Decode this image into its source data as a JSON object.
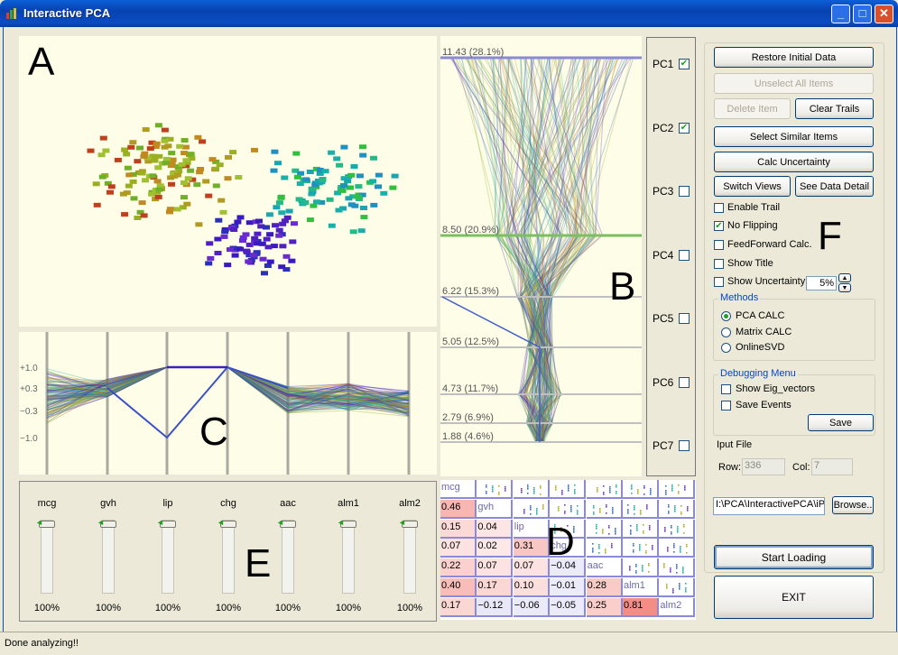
{
  "window": {
    "title": "Interactive PCA",
    "status": "Done analyzing!!"
  },
  "labels": {
    "a": "A",
    "b": "B",
    "c": "C",
    "d": "D",
    "e": "E",
    "f": "F"
  },
  "pc_panel": {
    "items": [
      {
        "label": "PC1",
        "checked": true
      },
      {
        "label": "PC2",
        "checked": true
      },
      {
        "label": "PC3",
        "checked": false
      },
      {
        "label": "PC4",
        "checked": false
      },
      {
        "label": "PC5",
        "checked": false
      },
      {
        "label": "PC6",
        "checked": false
      },
      {
        "label": "PC7",
        "checked": false
      }
    ]
  },
  "pc_axis": {
    "ticks": [
      "11.43 (28.1%)",
      "8.50 (20.9%)",
      "6.22 (15.3%)",
      "5.05 (12.5%)",
      "4.73 (11.7%)",
      "2.79 (6.9%)",
      "1.88 (4.6%)"
    ]
  },
  "parallel": {
    "yticks": [
      "+1.0",
      "+0.3",
      "−0.3",
      "−1.0"
    ]
  },
  "sliders": {
    "items": [
      {
        "name": "mcg",
        "value": "100%"
      },
      {
        "name": "gvh",
        "value": "100%"
      },
      {
        "name": "lip",
        "value": "100%"
      },
      {
        "name": "chg",
        "value": "100%"
      },
      {
        "name": "aac",
        "value": "100%"
      },
      {
        "name": "alm1",
        "value": "100%"
      },
      {
        "name": "alm2",
        "value": "100%"
      }
    ]
  },
  "matrix": {
    "rows": [
      [
        "mcg",
        "",
        "",
        "",
        "",
        "",
        ""
      ],
      [
        "0.46",
        "gvh",
        "",
        "",
        "",
        "",
        ""
      ],
      [
        "0.15",
        "0.04",
        "lip",
        "",
        "",
        "",
        ""
      ],
      [
        "0.07",
        "0.02",
        "0.31",
        "chg",
        "",
        "",
        ""
      ],
      [
        "0.22",
        "0.07",
        "0.07",
        "−0.04",
        "aac",
        "",
        ""
      ],
      [
        "0.40",
        "0.17",
        "0.10",
        "−0.01",
        "0.28",
        "alm1",
        ""
      ],
      [
        "0.17",
        "−0.12",
        "−0.06",
        "−0.05",
        "0.25",
        "0.81",
        "alm2"
      ]
    ]
  },
  "controls": {
    "restore": "Restore Initial Data",
    "unselect": "Unselect All Items",
    "delete": "Delete Item",
    "clear_trails": "Clear Trails",
    "select_similar": "Select Similar Items",
    "calc_uncertainty": "Calc Uncertainty",
    "switch_views": "Switch Views",
    "see_detail": "See Data Detail",
    "enable_trail": "Enable Trail",
    "no_flipping": "No Flipping",
    "feedforward": "FeedForward Calc.",
    "show_title": "Show Title",
    "show_uncertainty": "Show Uncertainty",
    "uncertainty_value": "5%",
    "methods_title": "Methods",
    "pca_calc": "PCA CALC",
    "matrix_calc": "Matrix CALC",
    "online_svd": "OnlineSVD",
    "debug_title": "Debugging Menu",
    "show_eig": "Show Eig_vectors",
    "save_events": "Save Events",
    "save": "Save",
    "input_file": "Iput File",
    "row_label": "Row:",
    "row_value": "336",
    "col_label": "Col:",
    "col_value": "7",
    "path": "I:\\PCA\\InteractivePCA\\iP",
    "browse": "Browse..",
    "start_loading": "Start Loading",
    "exit": "EXIT"
  },
  "colors": {
    "panel_bg": "#fdfde8",
    "title_blue": "#0a4cc4",
    "highlight_red": "#f28b8b"
  }
}
